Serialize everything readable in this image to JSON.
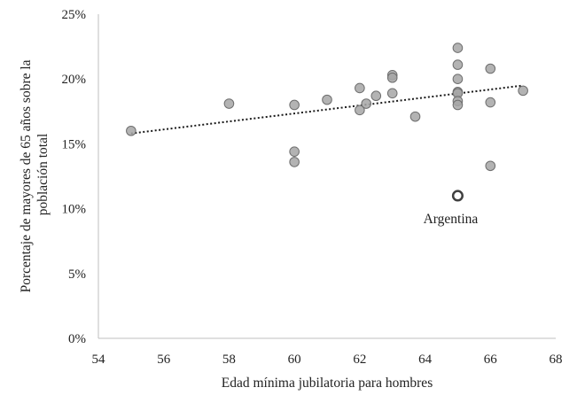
{
  "chart_data": {
    "type": "scatter",
    "xlabel": "Edad mínima jubilatoria para hombres",
    "ylabel_lines": [
      "Porcentaje de mayores de 65 años sobre la",
      "población total"
    ],
    "xlim": [
      54,
      68
    ],
    "ylim": [
      0,
      25
    ],
    "x_ticks": [
      54,
      56,
      58,
      60,
      62,
      64,
      66,
      68
    ],
    "y_ticks": [
      0,
      5,
      10,
      15,
      20,
      25
    ],
    "y_tick_labels": [
      "0%",
      "5%",
      "10%",
      "15%",
      "20%",
      "25%"
    ],
    "grid": false,
    "legend": "none",
    "series": [
      {
        "points": [
          {
            "x": 55,
            "y": 16.0
          },
          {
            "x": 58,
            "y": 18.1
          },
          {
            "x": 60,
            "y": 18.0
          },
          {
            "x": 60,
            "y": 14.4
          },
          {
            "x": 60,
            "y": 13.6
          },
          {
            "x": 61,
            "y": 18.4
          },
          {
            "x": 62,
            "y": 19.3
          },
          {
            "x": 62,
            "y": 17.6
          },
          {
            "x": 62.2,
            "y": 18.1
          },
          {
            "x": 62.5,
            "y": 18.7
          },
          {
            "x": 63,
            "y": 20.3
          },
          {
            "x": 63,
            "y": 20.1
          },
          {
            "x": 63,
            "y": 18.9
          },
          {
            "x": 63.7,
            "y": 17.1
          },
          {
            "x": 65,
            "y": 22.4
          },
          {
            "x": 65,
            "y": 21.1
          },
          {
            "x": 65,
            "y": 20.0
          },
          {
            "x": 65,
            "y": 19.0
          },
          {
            "x": 65,
            "y": 18.9
          },
          {
            "x": 65,
            "y": 18.3
          },
          {
            "x": 65,
            "y": 18.0
          },
          {
            "x": 66,
            "y": 20.8
          },
          {
            "x": 66,
            "y": 18.2
          },
          {
            "x": 66,
            "y": 13.3
          },
          {
            "x": 67,
            "y": 19.1
          }
        ]
      }
    ],
    "highlight": {
      "x": 65,
      "y": 11.0,
      "label": "Argentina"
    },
    "trendline": {
      "type": "linear",
      "style": "dotted",
      "x_range": [
        55,
        67
      ],
      "y_start": 15.8,
      "y_end": 19.5
    },
    "colors": {
      "point_fill": "#a6a6a6",
      "point_stroke": "#6e6e6e",
      "highlight_stroke": "#404040",
      "axis": "#bfbfbf",
      "trendline": "#1a1a1a",
      "text": "#222222"
    }
  }
}
